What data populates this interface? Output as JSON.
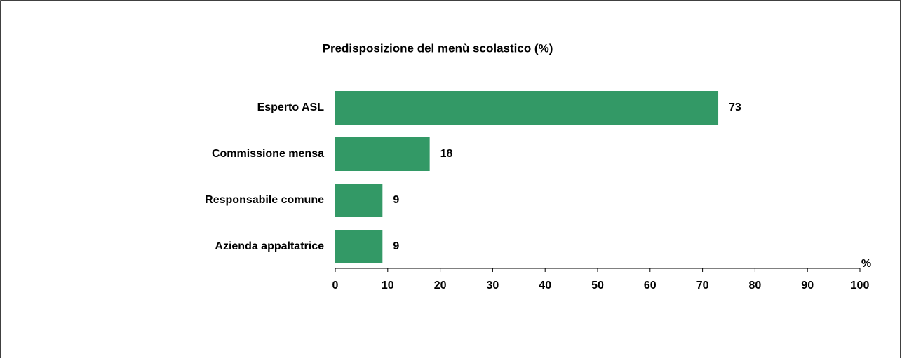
{
  "chart_data": {
    "type": "bar",
    "orientation": "horizontal",
    "title": "Predisposizione del menù scolastico (%)",
    "x_label": "%",
    "categories": [
      "Esperto ASL",
      "Commissione mensa",
      "Responsabile comune",
      "Azienda appaltatrice"
    ],
    "values": [
      73,
      18,
      9,
      9
    ],
    "color": "#339966",
    "xlim": [
      0,
      100
    ],
    "xticks": [
      0,
      10,
      20,
      30,
      40,
      50,
      60,
      70,
      80,
      90,
      100
    ],
    "grid": false
  }
}
